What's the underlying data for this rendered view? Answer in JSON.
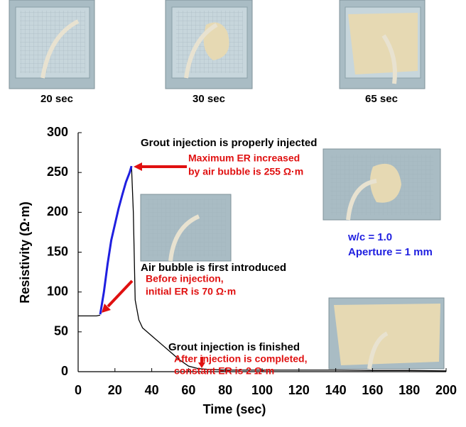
{
  "photos": [
    {
      "caption": "20 sec"
    },
    {
      "caption": "30 sec"
    },
    {
      "caption": "65 sec"
    }
  ],
  "chart_data": {
    "type": "line",
    "xlabel": "Time (sec)",
    "ylabel": "Resistivity (Ω·m)",
    "x": [
      0,
      5,
      10,
      12,
      14,
      16,
      18,
      20,
      22,
      24,
      26,
      28,
      29,
      30,
      31,
      33,
      35,
      40,
      45,
      50,
      55,
      60,
      65,
      70,
      80,
      100,
      120,
      140,
      160,
      180,
      200
    ],
    "series": [
      {
        "color": "#000000",
        "values": [
          70,
          70,
          70,
          71,
          null,
          null,
          null,
          null,
          null,
          null,
          null,
          null,
          258,
          200,
          90,
          65,
          55,
          45,
          35,
          25,
          15,
          7,
          4,
          3,
          2,
          2,
          2,
          2,
          1.5,
          1.5,
          1
        ]
      },
      {
        "color": "#1f1fe0",
        "values": [
          null,
          null,
          null,
          72,
          100,
          135,
          165,
          185,
          205,
          222,
          238,
          250,
          258,
          null,
          null,
          null,
          null,
          null,
          null,
          null,
          null,
          null,
          null,
          null,
          null,
          null,
          null,
          null,
          null,
          null,
          null
        ]
      }
    ],
    "xlim": [
      0,
      200
    ],
    "ylim": [
      0,
      300
    ],
    "xticks": [
      0,
      20,
      40,
      60,
      80,
      100,
      120,
      140,
      160,
      180,
      200
    ],
    "yticks": [
      0,
      50,
      100,
      150,
      200,
      250,
      300
    ],
    "annotations": [
      {
        "text": "Grout injection is properly injected",
        "color": "#000000"
      },
      {
        "text": "Maximum ER increased",
        "color": "#e01010"
      },
      {
        "text": "by air bubble is 255 Ω·m",
        "color": "#e01010"
      },
      {
        "text": "Air bubble is first introduced",
        "color": "#000000"
      },
      {
        "text": "Before injection,",
        "color": "#e01010"
      },
      {
        "text": "initial ER is 70 Ω·m",
        "color": "#e01010"
      },
      {
        "text": "Grout injection is finished",
        "color": "#000000"
      },
      {
        "text": "After injection is completed,",
        "color": "#e01010"
      },
      {
        "text": "constant ER is 2 Ω·m",
        "color": "#e01010"
      },
      {
        "text": "w/c = 1.0",
        "color": "#1f1fe0"
      },
      {
        "text": "Aperture = 1 mm",
        "color": "#1f1fe0"
      }
    ]
  }
}
